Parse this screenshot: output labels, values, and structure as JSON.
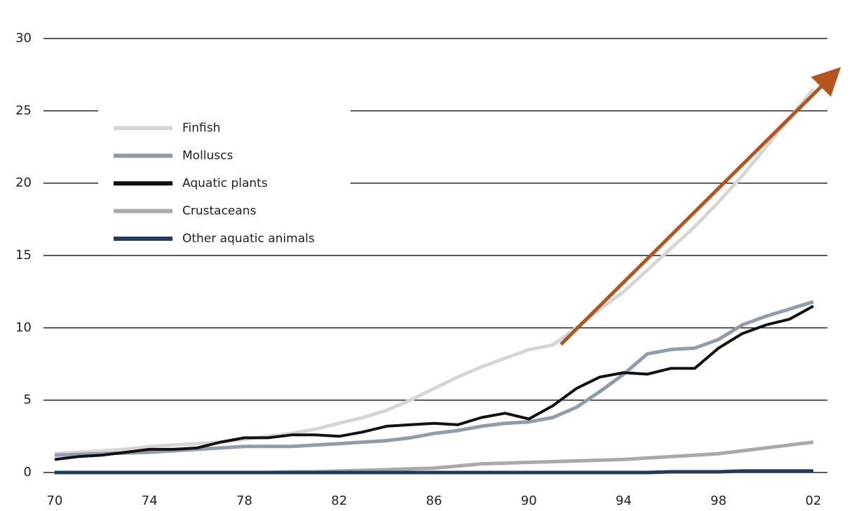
{
  "chart_data": {
    "type": "line",
    "x": [
      1970,
      1971,
      1972,
      1973,
      1974,
      1975,
      1976,
      1977,
      1978,
      1979,
      1980,
      1981,
      1982,
      1983,
      1984,
      1985,
      1986,
      1987,
      1988,
      1989,
      1990,
      1991,
      1992,
      1993,
      1994,
      1995,
      1996,
      1997,
      1998,
      1999,
      2000,
      2001,
      2002
    ],
    "series": [
      {
        "name": "Finfish",
        "color": "#d6d6d6",
        "values": [
          1.3,
          1.4,
          1.5,
          1.6,
          1.8,
          1.9,
          2.0,
          2.1,
          2.3,
          2.5,
          2.7,
          3.0,
          3.4,
          3.8,
          4.3,
          5.0,
          5.8,
          6.6,
          7.3,
          7.9,
          8.5,
          8.8,
          10.0,
          11.3,
          12.5,
          14.0,
          15.5,
          17.0,
          18.7,
          20.5,
          22.5,
          24.5,
          26.5
        ]
      },
      {
        "name": "Molluscs",
        "color": "#8d9dab",
        "values": [
          1.2,
          1.25,
          1.3,
          1.35,
          1.4,
          1.5,
          1.6,
          1.7,
          1.8,
          1.8,
          1.8,
          1.9,
          2.0,
          2.1,
          2.2,
          2.4,
          2.7,
          2.9,
          3.2,
          3.4,
          3.5,
          3.8,
          4.5,
          5.6,
          6.8,
          8.2,
          8.5,
          8.6,
          9.2,
          10.2,
          10.8,
          11.3,
          11.8
        ]
      },
      {
        "name": "Aquatic plants",
        "color": "#111111",
        "values": [
          0.9,
          1.1,
          1.2,
          1.4,
          1.6,
          1.6,
          1.7,
          2.1,
          2.4,
          2.4,
          2.6,
          2.6,
          2.5,
          2.8,
          3.2,
          3.3,
          3.4,
          3.3,
          3.8,
          4.1,
          3.7,
          4.6,
          5.8,
          6.6,
          6.9,
          6.8,
          7.2,
          7.2,
          8.6,
          9.6,
          10.2,
          10.6,
          11.5
        ]
      },
      {
        "name": "Crustaceans",
        "color": "#a9a9a9",
        "values": [
          0,
          0,
          0,
          0,
          0,
          0,
          0,
          0,
          0,
          0,
          0.05,
          0.05,
          0.1,
          0.15,
          0.2,
          0.25,
          0.3,
          0.45,
          0.6,
          0.65,
          0.7,
          0.75,
          0.8,
          0.85,
          0.9,
          1.0,
          1.1,
          1.2,
          1.3,
          1.5,
          1.7,
          1.9,
          2.1
        ]
      },
      {
        "name": "Other aquatic animals",
        "color": "#1f3a5a",
        "values": [
          0,
          0,
          0,
          0,
          0,
          0,
          0,
          0,
          0,
          0,
          0,
          0,
          0,
          0,
          0,
          0,
          0,
          0,
          0,
          0,
          0,
          0,
          0,
          0,
          0,
          0,
          0.05,
          0.05,
          0.05,
          0.1,
          0.1,
          0.1,
          0.1
        ]
      }
    ],
    "xlim": [
      1970,
      2002
    ],
    "xticks": [
      {
        "value": 1970,
        "label": "70"
      },
      {
        "value": 1974,
        "label": "74"
      },
      {
        "value": 1978,
        "label": "78"
      },
      {
        "value": 1982,
        "label": "82"
      },
      {
        "value": 1986,
        "label": "86"
      },
      {
        "value": 1990,
        "label": "90"
      },
      {
        "value": 1994,
        "label": "94"
      },
      {
        "value": 1998,
        "label": "98"
      },
      {
        "value": 2002,
        "label": "02"
      }
    ],
    "ylim": [
      0,
      30
    ],
    "yticks": [
      0,
      5,
      10,
      15,
      20,
      25,
      30
    ],
    "grid": true,
    "legend": "upper left"
  }
}
